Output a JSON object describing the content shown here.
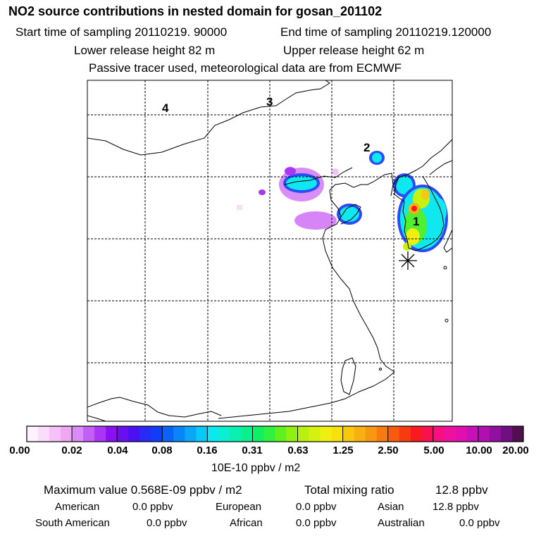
{
  "header": {
    "title": "NO2 source contributions in nested domain for gosan_201102",
    "start_time": "Start time of sampling 20110219. 90000",
    "end_time": "End time of sampling 20110219.120000",
    "lower_release": "Lower release height   82 m",
    "upper_release": "Upper release height   62 m",
    "tracer_note": "Passive tracer used, meteorological data are from ECMWF"
  },
  "map": {
    "region_labels": [
      "1",
      "2",
      "3",
      "4"
    ],
    "receptor_marker": "gosan-asterisk"
  },
  "colorbar": {
    "tick_labels": [
      "0.00",
      "0.02",
      "0.04",
      "0.08",
      "0.16",
      "0.31",
      "0.63",
      "1.25",
      "2.50",
      "5.00",
      "10.00",
      "20.00"
    ],
    "units": "10E-10 ppbv / m2",
    "colors": [
      "#fff2ff",
      "#fbdcfb",
      "#f5c2f7",
      "#efa6f3",
      "#d88cf6",
      "#c35ff4",
      "#a936f2",
      "#8a10ef",
      "#6a10f0",
      "#4a10f2",
      "#2a2af6",
      "#103ef8",
      "#0a62f8",
      "#0a84f8",
      "#0aa6f8",
      "#0ac8f8",
      "#0ae8f0",
      "#0af0d0",
      "#0af0b0",
      "#0af08c",
      "#10f066",
      "#30f040",
      "#60f020",
      "#90f010",
      "#b8f010",
      "#d8f010",
      "#f0f010",
      "#f8e010",
      "#f8c810",
      "#f8b010",
      "#f89810",
      "#f87a10",
      "#f85a10",
      "#f83a10",
      "#f81a20",
      "#f81050",
      "#f81080",
      "#f010a0",
      "#e010b0",
      "#c810b8",
      "#b010b0",
      "#9010a0",
      "#701080",
      "#501050"
    ]
  },
  "summary": {
    "max_value": "Maximum value  0.568E-09 ppbv / m2",
    "total_mixing": "Total mixing ratio",
    "total_mixing_value": "12.8 ppbv",
    "regions": [
      {
        "name": "American",
        "value": "0.0 ppbv"
      },
      {
        "name": "European",
        "value": "0.0 ppbv"
      },
      {
        "name": "Asian",
        "value": "12.8 ppbv"
      },
      {
        "name": "South American",
        "value": "0.0 ppbv"
      },
      {
        "name": "African",
        "value": "0.0 ppbv"
      },
      {
        "name": "Australian",
        "value": "0.0 ppbv"
      }
    ]
  }
}
